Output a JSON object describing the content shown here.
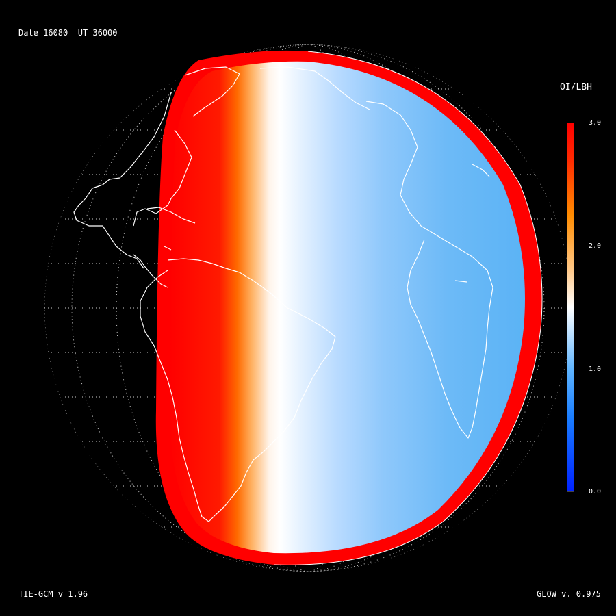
{
  "header": {
    "date_label": "Date 16080  UT 36000"
  },
  "footer": {
    "left_label": "TIE-GCM v 1.96",
    "right_label": "GLOW v. 0.975"
  },
  "colorbar": {
    "title": "OI/LBH",
    "ticks": [
      "3.0",
      "2.0",
      "1.0",
      "0.0"
    ],
    "range": [
      0.0,
      3.0
    ]
  },
  "map": {
    "projection": "orthographic",
    "colors": {
      "low": "#0022ff",
      "mid_blue": "#5eb4ff",
      "neutral": "#ffffff",
      "orange": "#ff8c00",
      "high": "#ff0000",
      "coastline": "#ffffff",
      "background": "#000000"
    }
  }
}
